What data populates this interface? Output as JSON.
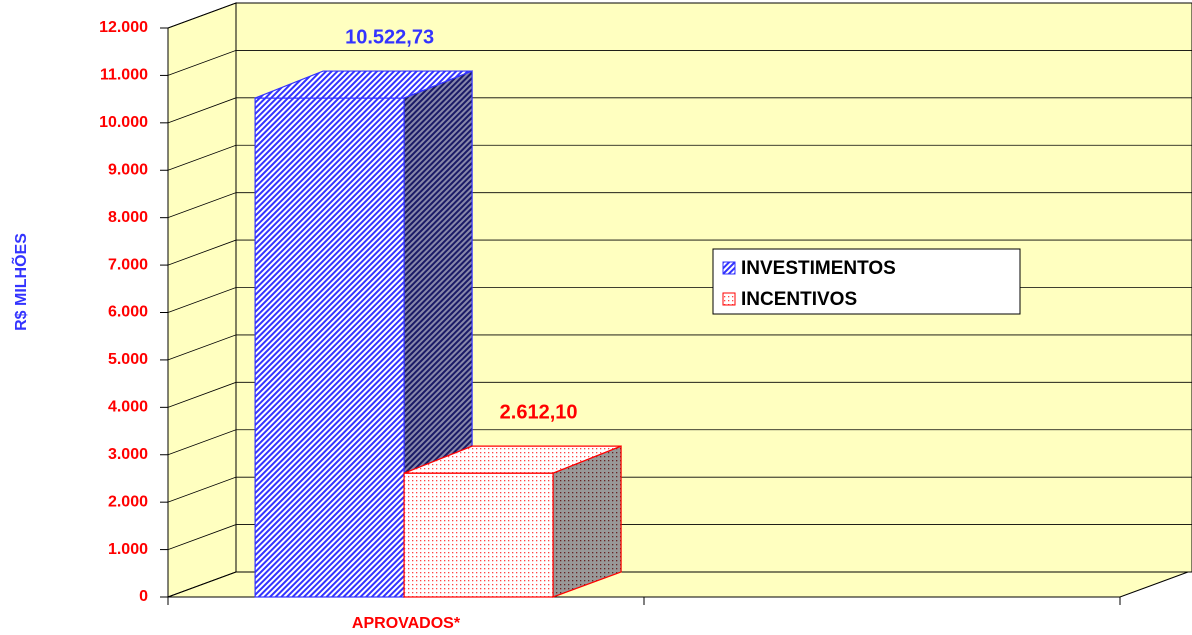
{
  "chart_data": {
    "type": "bar3d",
    "y_label": "R$ MILHÕES",
    "categories": [
      "APROVADOS*",
      null
    ],
    "series": [
      {
        "name": "INVESTIMENTOS",
        "color": "#3333ff",
        "values": [
          10522.73,
          null
        ],
        "value_labels": [
          "10.522,73",
          null
        ]
      },
      {
        "name": "INCENTIVOS",
        "color": "#ff0000",
        "values": [
          2612.1,
          null
        ],
        "value_labels": [
          "2.612,10",
          null
        ]
      }
    ],
    "ylim": [
      0,
      12000
    ],
    "yticks": [
      0,
      {
        "value": 1000,
        "label": "1.000"
      },
      {
        "value": 2000,
        "label": "2.000"
      },
      {
        "value": 3000,
        "label": "3.000"
      },
      {
        "value": 4000,
        "label": "4.000"
      },
      {
        "value": 5000,
        "label": "5.000"
      },
      {
        "value": 6000,
        "label": "6.000"
      },
      {
        "value": 7000,
        "label": "7.000"
      },
      {
        "value": 8000,
        "label": "8.000"
      },
      {
        "value": 9000,
        "label": "9.000"
      },
      {
        "value": 10000,
        "label": "10.000"
      },
      {
        "value": 11000,
        "label": "11.000"
      },
      {
        "value": 12000,
        "label": "12.000"
      }
    ],
    "grid": true,
    "legend": "right",
    "background": "#ffffc0"
  }
}
